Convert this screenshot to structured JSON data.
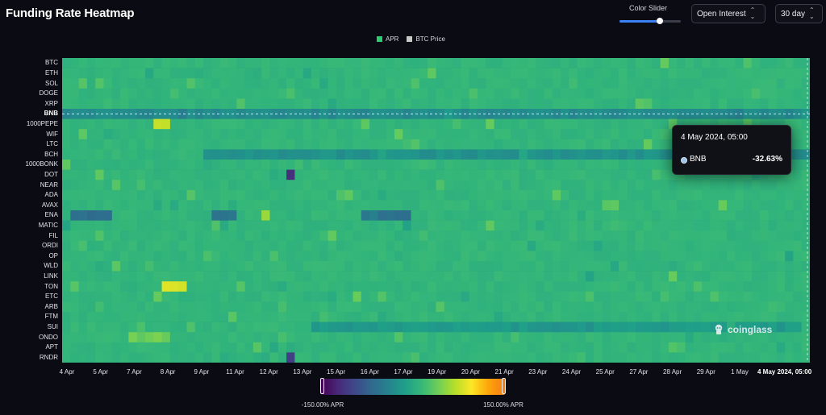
{
  "page": {
    "title": "Funding Rate Heatmap"
  },
  "controls": {
    "color_slider_label": "Color Slider",
    "color_slider_value": 0.66,
    "metric_select": "Open Interest",
    "range_select": "30 day"
  },
  "legend": [
    {
      "label": "APR",
      "color": "#2ecc71"
    },
    {
      "label": "BTC Price",
      "color": "#c8c8c8"
    }
  ],
  "tooltip": {
    "date": "4 May 2024, 05:00",
    "coin": "BNB",
    "value": "-32.63%"
  },
  "watermark": "coinglass",
  "colorbar": {
    "min_label": "-150.00% APR",
    "max_label": "150.00% APR",
    "min": -150,
    "max": 150
  },
  "chart_data": {
    "type": "heatmap",
    "title": "Funding Rate Heatmap",
    "series_name": "APR",
    "unit": "% APR",
    "coins": [
      "BTC",
      "ETH",
      "SOL",
      "DOGE",
      "XRP",
      "BNB",
      "1000PEPE",
      "WIF",
      "LTC",
      "BCH",
      "1000BONK",
      "DOT",
      "NEAR",
      "ADA",
      "AVAX",
      "ENA",
      "MATIC",
      "FIL",
      "ORDI",
      "OP",
      "WLD",
      "LINK",
      "TON",
      "ETC",
      "ARB",
      "FTM",
      "SUI",
      "ONDO",
      "APT",
      "RNDR"
    ],
    "highlighted_coin": "BNB",
    "x_ticks": [
      "4 Apr",
      "5 Apr",
      "7 Apr",
      "8 Apr",
      "9 Apr",
      "11 Apr",
      "12 Apr",
      "13 Apr",
      "15 Apr",
      "16 Apr",
      "17 Apr",
      "19 Apr",
      "20 Apr",
      "21 Apr",
      "23 Apr",
      "24 Apr",
      "25 Apr",
      "27 Apr",
      "28 Apr",
      "29 Apr",
      "1 May"
    ],
    "x_highlight_label": "4 May 2024, 05:00",
    "baseline_apr": 10.95,
    "color_range": [
      -150,
      150
    ],
    "anomalies": [
      {
        "coin": "BNB",
        "from": 0,
        "to": 1,
        "apr": -32.63
      },
      {
        "coin": "BCH",
        "from": 0.18,
        "to": 1,
        "apr": -25
      },
      {
        "coin": "ENA",
        "from": 0.01,
        "to": 0.06,
        "apr": -60
      },
      {
        "coin": "ENA",
        "from": 0.19,
        "to": 0.23,
        "apr": -55
      },
      {
        "coin": "ENA",
        "from": 0.4,
        "to": 0.46,
        "apr": -55
      },
      {
        "coin": "SUI",
        "from": 0.33,
        "to": 0.98,
        "apr": -18
      },
      {
        "coin": "DOT",
        "from": 0.3,
        "to": 0.31,
        "apr": -120
      },
      {
        "coin": "RNDR",
        "from": 0.3,
        "to": 0.31,
        "apr": -100
      },
      {
        "coin": "1000PEPE",
        "from": 0.12,
        "to": 0.14,
        "apr": 80
      },
      {
        "coin": "TON",
        "from": 0.13,
        "to": 0.16,
        "apr": 85
      },
      {
        "coin": "ONDO",
        "from": 0.08,
        "to": 0.14,
        "apr": 40
      },
      {
        "coin": "ENA",
        "from": 0.26,
        "to": 0.27,
        "apr": 60
      }
    ]
  }
}
